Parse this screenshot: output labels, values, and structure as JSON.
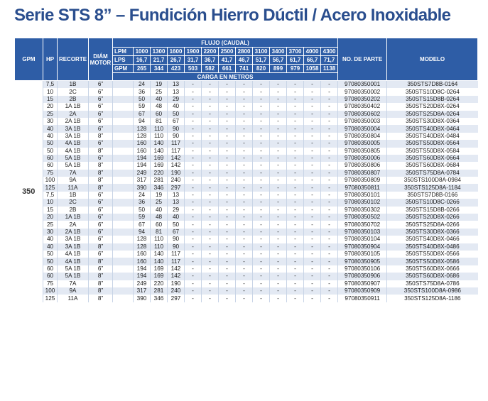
{
  "title": "Serie STS 8” – Fundición Hierro Dúctil / Acero Inoxidable",
  "header": {
    "gpm": "GPM",
    "hp": "HP",
    "recorte": "RECORTE",
    "diam_motor": "DIÁM MOTOR",
    "flujo": "FLUJO (CAUDAL)",
    "carga": "CARGA EN METROS",
    "no_parte": "NO. DE PARTE",
    "modelo": "MODELO",
    "lpm_label": "LPM",
    "lps_label": "LPS",
    "gpm_label": "GPM",
    "lpm": [
      "1000",
      "1300",
      "1600",
      "1900",
      "2200",
      "2500",
      "2800",
      "3100",
      "3400",
      "3700",
      "4000",
      "4300"
    ],
    "lps": [
      "16,7",
      "21,7",
      "26,7",
      "31,7",
      "36,7",
      "41,7",
      "46,7",
      "51,7",
      "56,7",
      "61,7",
      "66,7",
      "71,7"
    ],
    "gpm_vals": [
      "265",
      "344",
      "423",
      "503",
      "582",
      "661",
      "741",
      "820",
      "899",
      "979",
      "1058",
      "1138"
    ]
  },
  "gpm_value": "350",
  "rows": [
    {
      "hp": "7,5",
      "recorte": "1B",
      "diam": "6”",
      "flow": [
        "24",
        "19",
        "13",
        "-",
        "-",
        "-",
        "-",
        "-",
        "-",
        "-",
        "-",
        "-"
      ],
      "parte": "97080350001",
      "modelo": "350STS7D8B-0164"
    },
    {
      "hp": "10",
      "recorte": "2C",
      "diam": "6”",
      "flow": [
        "36",
        "25",
        "13",
        "-",
        "-",
        "-",
        "-",
        "-",
        "-",
        "-",
        "-",
        "-"
      ],
      "parte": "97080350002",
      "modelo": "350STS10D8C-0264"
    },
    {
      "hp": "15",
      "recorte": "2B",
      "diam": "6”",
      "flow": [
        "50",
        "40",
        "29",
        "-",
        "-",
        "-",
        "-",
        "-",
        "-",
        "-",
        "-",
        "-"
      ],
      "parte": "97080350202",
      "modelo": "350STS15D8B-0264"
    },
    {
      "hp": "20",
      "recorte": "1A 1B",
      "diam": "6”",
      "flow": [
        "59",
        "48",
        "40",
        "-",
        "-",
        "-",
        "-",
        "-",
        "-",
        "-",
        "-",
        "-"
      ],
      "parte": "97080350402",
      "modelo": "350STS20D8X-0264"
    },
    {
      "hp": "25",
      "recorte": "2A",
      "diam": "6”",
      "flow": [
        "67",
        "60",
        "50",
        "-",
        "-",
        "-",
        "-",
        "-",
        "-",
        "-",
        "-",
        "-"
      ],
      "parte": "97080350602",
      "modelo": "350STS25D8A-0264"
    },
    {
      "hp": "30",
      "recorte": "2A 1B",
      "diam": "6”",
      "flow": [
        "94",
        "81",
        "67",
        "-",
        "-",
        "-",
        "-",
        "-",
        "-",
        "-",
        "-",
        "-"
      ],
      "parte": "97080350003",
      "modelo": "350STS30D8X-0364"
    },
    {
      "hp": "40",
      "recorte": "3A 1B",
      "diam": "6”",
      "flow": [
        "128",
        "110",
        "90",
        "-",
        "-",
        "-",
        "-",
        "-",
        "-",
        "-",
        "-",
        "-"
      ],
      "parte": "97080350004",
      "modelo": "350STS40D8X-0464"
    },
    {
      "hp": "40",
      "recorte": "3A 1B",
      "diam": "8”",
      "flow": [
        "128",
        "110",
        "90",
        "-",
        "-",
        "-",
        "-",
        "-",
        "-",
        "-",
        "-",
        "-"
      ],
      "parte": "97080350804",
      "modelo": "350STS40D8X-0484"
    },
    {
      "hp": "50",
      "recorte": "4A 1B",
      "diam": "6”",
      "flow": [
        "160",
        "140",
        "117",
        "-",
        "-",
        "-",
        "-",
        "-",
        "-",
        "-",
        "-",
        "-"
      ],
      "parte": "97080350005",
      "modelo": "350STS50D8X-0564"
    },
    {
      "hp": "50",
      "recorte": "4A 1B",
      "diam": "8”",
      "flow": [
        "160",
        "140",
        "117",
        "-",
        "-",
        "-",
        "-",
        "-",
        "-",
        "-",
        "-",
        "-"
      ],
      "parte": "97080350805",
      "modelo": "350STS50D8X-0584"
    },
    {
      "hp": "60",
      "recorte": "5A 1B",
      "diam": "6”",
      "flow": [
        "194",
        "169",
        "142",
        "-",
        "-",
        "-",
        "-",
        "-",
        "-",
        "-",
        "-",
        "-"
      ],
      "parte": "97080350006",
      "modelo": "350STS60D8X-0664"
    },
    {
      "hp": "60",
      "recorte": "5A 1B",
      "diam": "8”",
      "flow": [
        "194",
        "169",
        "142",
        "-",
        "-",
        "-",
        "-",
        "-",
        "-",
        "-",
        "-",
        "-"
      ],
      "parte": "97080350806",
      "modelo": "350STS60D8X-0684"
    },
    {
      "hp": "75",
      "recorte": "7A",
      "diam": "8”",
      "flow": [
        "249",
        "220",
        "190",
        "-",
        "-",
        "-",
        "-",
        "-",
        "-",
        "-",
        "-",
        "-"
      ],
      "parte": "97080350807",
      "modelo": "350STS75D8A-0784"
    },
    {
      "hp": "100",
      "recorte": "9A",
      "diam": "8”",
      "flow": [
        "317",
        "281",
        "240",
        "-",
        "-",
        "-",
        "-",
        "-",
        "-",
        "-",
        "-",
        "-"
      ],
      "parte": "97080350809",
      "modelo": "350STS100D8A-0984"
    },
    {
      "hp": "125",
      "recorte": "11A",
      "diam": "8”",
      "flow": [
        "390",
        "346",
        "297",
        "-",
        "-",
        "-",
        "-",
        "-",
        "-",
        "-",
        "-",
        "-"
      ],
      "parte": "97080350811",
      "modelo": "350STS125D8A-1184"
    },
    {
      "hp": "7,5",
      "recorte": "1B",
      "diam": "6”",
      "flow": [
        "24",
        "19",
        "13",
        "-",
        "-",
        "-",
        "-",
        "-",
        "-",
        "-",
        "-",
        "-"
      ],
      "parte": "97080350101",
      "modelo": "350STS7D8B-0166"
    },
    {
      "hp": "10",
      "recorte": "2C",
      "diam": "6”",
      "flow": [
        "36",
        "25",
        "13",
        "-",
        "-",
        "-",
        "-",
        "-",
        "-",
        "-",
        "-",
        "-"
      ],
      "parte": "97080350102",
      "modelo": "350STS10D8C-0266"
    },
    {
      "hp": "15",
      "recorte": "2B",
      "diam": "6”",
      "flow": [
        "50",
        "40",
        "29",
        "-",
        "-",
        "-",
        "-",
        "-",
        "-",
        "-",
        "-",
        "-"
      ],
      "parte": "97080350302",
      "modelo": "350STS15D8B-0266"
    },
    {
      "hp": "20",
      "recorte": "1A 1B",
      "diam": "6”",
      "flow": [
        "59",
        "48",
        "40",
        "-",
        "-",
        "-",
        "-",
        "-",
        "-",
        "-",
        "-",
        "-"
      ],
      "parte": "97080350502",
      "modelo": "350STS20D8X-0266"
    },
    {
      "hp": "25",
      "recorte": "2A",
      "diam": "6”",
      "flow": [
        "67",
        "60",
        "50",
        "-",
        "-",
        "-",
        "-",
        "-",
        "-",
        "-",
        "-",
        "-"
      ],
      "parte": "97080350702",
      "modelo": "350STS25D8A-0266"
    },
    {
      "hp": "30",
      "recorte": "2A 1B",
      "diam": "6”",
      "flow": [
        "94",
        "81",
        "67",
        "-",
        "-",
        "-",
        "-",
        "-",
        "-",
        "-",
        "-",
        "-"
      ],
      "parte": "97080350103",
      "modelo": "350STS30D8X-0366"
    },
    {
      "hp": "40",
      "recorte": "3A 1B",
      "diam": "6”",
      "flow": [
        "128",
        "110",
        "90",
        "-",
        "-",
        "-",
        "-",
        "-",
        "-",
        "-",
        "-",
        "-"
      ],
      "parte": "97080350104",
      "modelo": "350STS40D8X-0466"
    },
    {
      "hp": "40",
      "recorte": "3A 1B",
      "diam": "8”",
      "flow": [
        "128",
        "110",
        "90",
        "-",
        "-",
        "-",
        "-",
        "-",
        "-",
        "-",
        "-",
        "-"
      ],
      "parte": "97080350904",
      "modelo": "350STS40D8X-0486"
    },
    {
      "hp": "50",
      "recorte": "4A 1B",
      "diam": "6”",
      "flow": [
        "160",
        "140",
        "117",
        "-",
        "-",
        "-",
        "-",
        "-",
        "-",
        "-",
        "-",
        "-"
      ],
      "parte": "97080350105",
      "modelo": "350STS50D8X-0566"
    },
    {
      "hp": "50",
      "recorte": "4A 1B",
      "diam": "8”",
      "flow": [
        "160",
        "140",
        "117",
        "-",
        "-",
        "-",
        "-",
        "-",
        "-",
        "-",
        "-",
        "-"
      ],
      "parte": "97080350905",
      "modelo": "350STS50D8X-0586"
    },
    {
      "hp": "60",
      "recorte": "5A 1B",
      "diam": "6”",
      "flow": [
        "194",
        "169",
        "142",
        "-",
        "-",
        "-",
        "-",
        "-",
        "-",
        "-",
        "-",
        "-"
      ],
      "parte": "97080350106",
      "modelo": "350STS60D8X-0666"
    },
    {
      "hp": "60",
      "recorte": "5A 1B",
      "diam": "8”",
      "flow": [
        "194",
        "169",
        "142",
        "-",
        "-",
        "-",
        "-",
        "-",
        "-",
        "-",
        "-",
        "-"
      ],
      "parte": "97080350906",
      "modelo": "350STS60D8X-0686"
    },
    {
      "hp": "75",
      "recorte": "7A",
      "diam": "8”",
      "flow": [
        "249",
        "220",
        "190",
        "-",
        "-",
        "-",
        "-",
        "-",
        "-",
        "-",
        "-",
        "-"
      ],
      "parte": "97080350907",
      "modelo": "350STS75D8A-0786"
    },
    {
      "hp": "100",
      "recorte": "9A",
      "diam": "8”",
      "flow": [
        "317",
        "281",
        "240",
        "-",
        "-",
        "-",
        "-",
        "-",
        "-",
        "-",
        "-",
        "-"
      ],
      "parte": "97080350909",
      "modelo": "350STS100D8A-0986"
    },
    {
      "hp": "125",
      "recorte": "11A",
      "diam": "8”",
      "flow": [
        "390",
        "346",
        "297",
        "-",
        "-",
        "-",
        "-",
        "-",
        "-",
        "-",
        "-",
        "-"
      ],
      "parte": "97080350911",
      "modelo": "350STS125D8A-1186"
    }
  ]
}
